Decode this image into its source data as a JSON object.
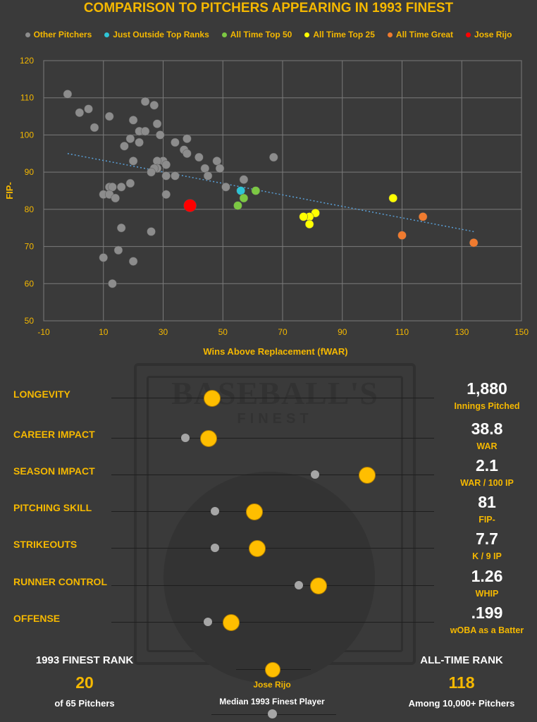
{
  "title": "COMPARISON TO PITCHERS APPEARING IN 1993 FINEST",
  "legend": [
    {
      "label": "Other Pitchers",
      "color": "#8c8c8c"
    },
    {
      "label": "Just Outside Top Ranks",
      "color": "#2ec4d6"
    },
    {
      "label": "All Time Top 50",
      "color": "#7cc843"
    },
    {
      "label": "All Time Top 25",
      "color": "#ffff00"
    },
    {
      "label": "All Time Great",
      "color": "#f07b2f"
    },
    {
      "label": "Jose Rijo",
      "color": "#ff0000"
    }
  ],
  "chart_data": {
    "type": "scatter",
    "xlabel": "Wins Above Replacement (fWAR)",
    "ylabel": "FIP-",
    "xlim": [
      -10,
      150
    ],
    "ylim": [
      50,
      120
    ],
    "xticks": [
      -10,
      10,
      30,
      50,
      70,
      90,
      110,
      130,
      150
    ],
    "yticks": [
      50,
      60,
      70,
      80,
      90,
      100,
      110,
      120
    ],
    "grid": true,
    "trendline": {
      "x": [
        -2,
        134
      ],
      "y": [
        95,
        74
      ]
    },
    "series": [
      {
        "name": "Other Pitchers",
        "color": "#8c8c8c",
        "points": [
          [
            -2,
            111
          ],
          [
            2,
            106
          ],
          [
            5,
            107
          ],
          [
            7,
            102
          ],
          [
            12,
            105
          ],
          [
            20,
            104
          ],
          [
            19,
            99
          ],
          [
            17,
            97
          ],
          [
            22,
            98
          ],
          [
            22,
            101
          ],
          [
            24,
            101
          ],
          [
            24,
            109
          ],
          [
            27,
            108
          ],
          [
            28,
            103
          ],
          [
            29,
            100
          ],
          [
            34,
            98
          ],
          [
            37,
            96
          ],
          [
            38,
            99
          ],
          [
            38,
            95
          ],
          [
            30,
            93
          ],
          [
            28,
            93
          ],
          [
            31,
            92
          ],
          [
            28,
            91
          ],
          [
            27,
            91
          ],
          [
            26,
            90
          ],
          [
            31,
            89
          ],
          [
            34,
            89
          ],
          [
            42,
            94
          ],
          [
            44,
            91
          ],
          [
            45,
            89
          ],
          [
            48,
            93
          ],
          [
            49,
            91
          ],
          [
            51,
            86
          ],
          [
            57,
            88
          ],
          [
            67,
            94
          ],
          [
            20,
            93
          ],
          [
            19,
            87
          ],
          [
            12,
            86
          ],
          [
            13,
            86
          ],
          [
            16,
            86
          ],
          [
            10,
            84
          ],
          [
            12,
            84
          ],
          [
            14,
            83
          ],
          [
            31,
            84
          ],
          [
            16,
            75
          ],
          [
            26,
            74
          ],
          [
            15,
            69
          ],
          [
            10,
            67
          ],
          [
            20,
            66
          ],
          [
            13,
            60
          ]
        ]
      },
      {
        "name": "Just Outside Top Ranks",
        "color": "#2ec4d6",
        "points": [
          [
            56,
            85
          ]
        ]
      },
      {
        "name": "All Time Top 50",
        "color": "#7cc843",
        "points": [
          [
            61,
            85
          ],
          [
            57,
            83
          ],
          [
            55,
            81
          ]
        ]
      },
      {
        "name": "All Time Top 25",
        "color": "#ffff00",
        "points": [
          [
            107,
            83
          ],
          [
            81,
            79
          ],
          [
            79,
            78
          ],
          [
            77,
            78
          ],
          [
            79,
            76
          ]
        ]
      },
      {
        "name": "All Time Great",
        "color": "#f07b2f",
        "points": [
          [
            117,
            78
          ],
          [
            110,
            73
          ],
          [
            134,
            71
          ]
        ]
      },
      {
        "name": "Jose Rijo",
        "color": "#ff0000",
        "points": [
          [
            39,
            81
          ]
        ]
      }
    ]
  },
  "emblem": {
    "text": "BASEBALL'S",
    "sub": "FINEST"
  },
  "categories": [
    {
      "label": "LONGEVITY",
      "median": null,
      "player": 0.31,
      "value": "1,880",
      "unit": "Innings Pitched"
    },
    {
      "label": "CAREER IMPACT",
      "median": 0.23,
      "player": 0.3,
      "value": "38.8",
      "unit": "WAR"
    },
    {
      "label": "SEASON IMPACT",
      "median": 0.63,
      "player": 0.79,
      "value": "2.1",
      "unit": "WAR / 100 IP"
    },
    {
      "label": "PITCHING SKILL",
      "median": 0.32,
      "player": 0.44,
      "value": "81",
      "unit": "FIP-"
    },
    {
      "label": "STRIKEOUTS",
      "median": 0.32,
      "player": 0.45,
      "value": "7.7",
      "unit": "K / 9 IP"
    },
    {
      "label": "RUNNER CONTROL",
      "median": 0.58,
      "player": 0.64,
      "value": "1.26",
      "unit": "WHIP"
    },
    {
      "label": "OFFENSE",
      "median": 0.3,
      "player": 0.37,
      "value": ".199",
      "unit": "wOBA as a Batter"
    }
  ],
  "finest_rank": {
    "title": "1993 FINEST RANK",
    "value": "20",
    "sub": "of 65 Pitchers"
  },
  "alltime_rank": {
    "title": "ALL-TIME RANK",
    "value": "118",
    "sub": "Among 10,000+ Pitchers"
  },
  "key": {
    "player_label": "Jose Rijo",
    "median_label": "Median 1993 Finest Player"
  }
}
